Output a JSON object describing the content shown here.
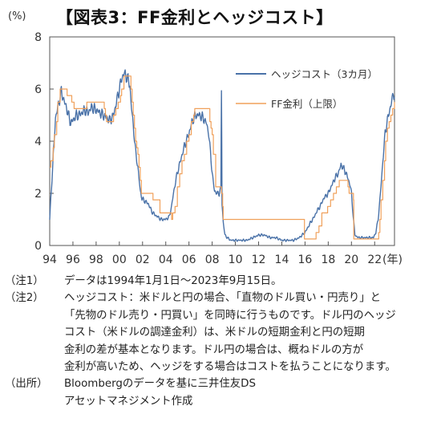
{
  "title": "【図表3：FF金利とヘッジコスト】",
  "chart_data": {
    "type": "line",
    "y_unit": "(%)",
    "x_unit": "(年)",
    "ylim": [
      0,
      8
    ],
    "yticks": [
      0,
      2,
      4,
      6,
      8
    ],
    "xticks": [
      "94",
      "96",
      "98",
      "00",
      "02",
      "04",
      "06",
      "08",
      "10",
      "12",
      "14",
      "16",
      "18",
      "20",
      "22"
    ],
    "xlim": [
      1994.0,
      2023.71
    ],
    "grid": false,
    "legend_position": "top-right",
    "series": [
      {
        "name": "ヘッジコスト（3カ月）",
        "color": "#4a72a8",
        "x": [
          1994.0,
          1994.2,
          1994.5,
          1994.8,
          1995.0,
          1995.2,
          1995.5,
          1995.8,
          1996.0,
          1996.3,
          1996.5,
          1996.8,
          1997.0,
          1997.3,
          1997.6,
          1998.0,
          1998.3,
          1998.6,
          1998.9,
          1999.2,
          1999.5,
          1999.8,
          2000.0,
          2000.2,
          2000.4,
          2000.6,
          2000.9,
          2001.0,
          2001.2,
          2001.4,
          2001.6,
          2001.8,
          2001.95,
          2002.2,
          2002.5,
          2002.8,
          2003.0,
          2003.3,
          2003.6,
          2004.0,
          2004.3,
          2004.5,
          2004.7,
          2005.0,
          2005.3,
          2005.6,
          2006.0,
          2006.3,
          2006.6,
          2006.9,
          2007.2,
          2007.5,
          2007.7,
          2007.9,
          2008.0,
          2008.1,
          2008.2,
          2008.4,
          2008.6,
          2008.75,
          2008.8,
          2008.85,
          2008.95,
          2009.1,
          2009.3,
          2009.6,
          2010.0,
          2010.5,
          2011.0,
          2011.5,
          2012.0,
          2012.5,
          2013.0,
          2013.5,
          2014.0,
          2014.5,
          2015.0,
          2015.5,
          2016.0,
          2016.5,
          2016.8,
          2017.0,
          2017.3,
          2017.6,
          2018.0,
          2018.3,
          2018.6,
          2018.9,
          2019.1,
          2019.4,
          2019.6,
          2019.9,
          2020.0,
          2020.1,
          2020.2,
          2020.3,
          2020.6,
          2021.0,
          2021.5,
          2021.9,
          2022.1,
          2022.3,
          2022.5,
          2022.7,
          2022.9,
          2023.1,
          2023.3,
          2023.5,
          2023.71
        ],
        "values": [
          1.0,
          2.6,
          4.9,
          5.5,
          5.9,
          5.6,
          5.2,
          4.7,
          4.8,
          5.0,
          5.0,
          5.1,
          5.2,
          5.1,
          5.3,
          5.2,
          5.1,
          5.0,
          4.9,
          4.8,
          5.0,
          5.6,
          6.0,
          6.4,
          6.6,
          6.5,
          6.2,
          5.5,
          4.6,
          3.6,
          3.0,
          2.1,
          1.8,
          1.7,
          1.6,
          1.3,
          1.2,
          1.1,
          1.0,
          1.0,
          1.1,
          1.5,
          2.1,
          2.8,
          3.3,
          3.8,
          4.3,
          4.8,
          5.0,
          5.0,
          4.9,
          4.7,
          4.3,
          3.3,
          2.8,
          2.4,
          2.1,
          2.0,
          2.0,
          2.2,
          6.0,
          1.6,
          0.9,
          0.4,
          0.3,
          0.2,
          0.2,
          0.2,
          0.2,
          0.3,
          0.4,
          0.4,
          0.3,
          0.3,
          0.2,
          0.2,
          0.2,
          0.3,
          0.5,
          0.9,
          1.1,
          1.3,
          1.5,
          1.8,
          2.0,
          2.3,
          2.6,
          2.8,
          3.1,
          2.9,
          2.7,
          2.3,
          2.0,
          1.4,
          0.9,
          0.4,
          0.3,
          0.3,
          0.3,
          0.3,
          0.5,
          1.0,
          2.0,
          3.2,
          4.3,
          4.8,
          5.2,
          5.6,
          5.7
        ]
      },
      {
        "name": "FF金利（上限）",
        "color": "#f0a05a",
        "x": [
          1994.0,
          1994.1,
          1994.3,
          1994.4,
          1994.6,
          1994.7,
          1994.9,
          1995.1,
          1995.5,
          1995.9,
          1996.1,
          1997.2,
          1998.7,
          1998.8,
          1998.9,
          1999.5,
          1999.7,
          1999.9,
          2000.1,
          2000.2,
          2000.4,
          2001.0,
          2001.1,
          2001.2,
          2001.3,
          2001.4,
          2001.5,
          2001.6,
          2001.7,
          2001.8,
          2001.9,
          2002.9,
          2003.5,
          2004.5,
          2004.6,
          2004.8,
          2005.0,
          2005.2,
          2005.4,
          2005.6,
          2005.8,
          2006.0,
          2006.2,
          2006.4,
          2006.5,
          2007.7,
          2007.8,
          2007.9,
          2008.0,
          2008.1,
          2008.3,
          2008.8,
          2008.9,
          2008.95,
          2015.95,
          2016.95,
          2017.2,
          2017.45,
          2017.95,
          2018.2,
          2018.45,
          2018.7,
          2018.95,
          2019.55,
          2019.7,
          2019.8,
          2020.17,
          2020.2,
          2022.2,
          2022.35,
          2022.45,
          2022.55,
          2022.7,
          2022.85,
          2022.95,
          2023.1,
          2023.25,
          2023.4,
          2023.55,
          2023.71
        ],
        "values": [
          3.0,
          3.25,
          3.75,
          4.25,
          4.75,
          5.5,
          6.0,
          6.0,
          5.75,
          5.5,
          5.25,
          5.5,
          5.25,
          5.0,
          4.75,
          5.0,
          5.25,
          5.5,
          5.75,
          6.0,
          6.5,
          6.0,
          5.5,
          5.0,
          4.5,
          4.0,
          3.75,
          3.5,
          3.0,
          2.5,
          2.0,
          1.75,
          1.25,
          1.0,
          1.25,
          1.5,
          2.25,
          2.75,
          3.25,
          3.5,
          4.0,
          4.25,
          4.75,
          5.0,
          5.25,
          5.25,
          4.75,
          4.5,
          4.25,
          3.5,
          2.25,
          2.0,
          1.5,
          1.0,
          0.25,
          0.5,
          0.75,
          1.25,
          1.5,
          1.75,
          2.0,
          2.25,
          2.5,
          2.5,
          2.25,
          2.0,
          1.75,
          0.25,
          0.25,
          0.5,
          1.0,
          1.75,
          2.5,
          3.25,
          4.0,
          4.5,
          4.75,
          5.0,
          5.25,
          5.5
        ]
      }
    ]
  },
  "notes": [
    {
      "head": "（注1）",
      "lines": [
        "データは1994年1月1日～2023年9月15日。"
      ]
    },
    {
      "head": "（注2）",
      "lines": [
        "ヘッジコスト：米ドルと円の場合、「直物のドル買い・円売り」と",
        "「先物のドル売り・円買い」を同時に行うものです。ドル円のヘッジ",
        "コスト（米ドルの調達金利）は、米ドルの短期金利と円の短期",
        "金利の差が基本となります。ドル円の場合は、概ねドルの方が",
        "金利が高いため、ヘッジをする場合はコストを払うことになります。"
      ]
    },
    {
      "head": "（出所）",
      "lines": [
        "Bloombergのデータを基に三井住友DS"
      ]
    },
    {
      "head": "",
      "lines": [
        "アセットマネジメント作成"
      ]
    }
  ]
}
